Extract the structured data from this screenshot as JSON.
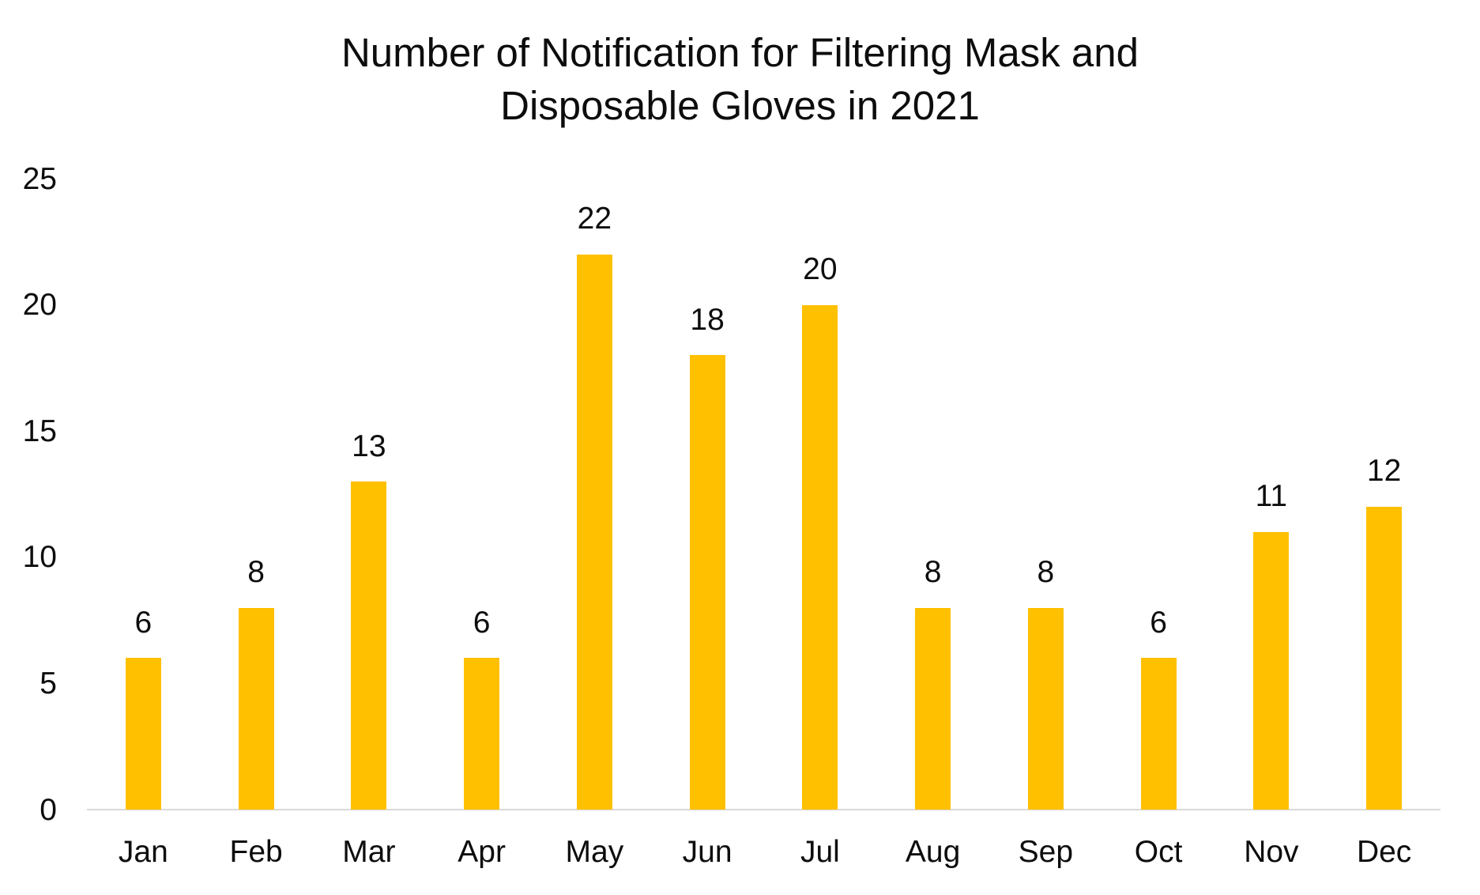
{
  "chart_data": {
    "type": "bar",
    "title": "Number of Notification for Filtering Mask and Disposable Gloves in 2021",
    "title_lines": [
      "Number of Notification for Filtering Mask and",
      "Disposable Gloves in 2021"
    ],
    "categories": [
      "Jan",
      "Feb",
      "Mar",
      "Apr",
      "May",
      "Jun",
      "Jul",
      "Aug",
      "Sep",
      "Oct",
      "Nov",
      "Dec"
    ],
    "values": [
      6,
      8,
      13,
      6,
      22,
      18,
      20,
      8,
      8,
      6,
      11,
      12
    ],
    "yticks": [
      0,
      5,
      10,
      15,
      20,
      25
    ],
    "ylim": [
      0,
      25
    ],
    "xlabel": "",
    "ylabel": "",
    "data_labels": true,
    "grid": false,
    "legend": false,
    "bar_color": "#FFC000",
    "axis_line_color": "#D9D9D9",
    "text_color": "#0D0D0D",
    "background": "#FFFFFF"
  }
}
